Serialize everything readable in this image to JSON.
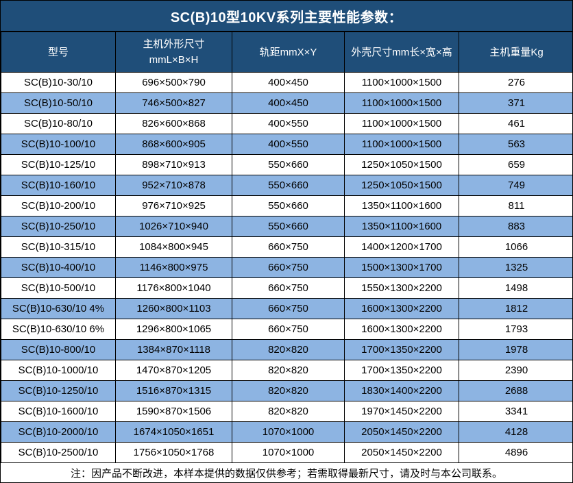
{
  "title": "SC(B)10型10KV系列主要性能参数：",
  "table": {
    "headers": [
      {
        "label": "型号"
      },
      {
        "label": "主机外形尺寸",
        "label2": "mmL×B×H"
      },
      {
        "label": "轨距mmX×Y"
      },
      {
        "label": "外壳尺寸mm长×宽×高"
      },
      {
        "label": "主机重量Kg"
      }
    ],
    "rows": [
      [
        "SC(B)10-30/10",
        "696×500×790",
        "400×450",
        "1100×1000×1500",
        "276"
      ],
      [
        "SC(B)10-50/10",
        "746×500×827",
        "400×450",
        "1100×1000×1500",
        "371"
      ],
      [
        "SC(B)10-80/10",
        "826×600×868",
        "400×550",
        "1100×1000×1500",
        "461"
      ],
      [
        "SC(B)10-100/10",
        "868×600×905",
        "400×550",
        "1100×1000×1500",
        "563"
      ],
      [
        "SC(B)10-125/10",
        "898×710×913",
        "550×660",
        "1250×1050×1500",
        "659"
      ],
      [
        "SC(B)10-160/10",
        "952×710×878",
        "550×660",
        "1250×1050×1500",
        "749"
      ],
      [
        "SC(B)10-200/10",
        "976×710×925",
        "550×660",
        "1350×1100×1600",
        "811"
      ],
      [
        "SC(B)10-250/10",
        "1026×710×940",
        "550×660",
        "1350×1100×1600",
        "883"
      ],
      [
        "SC(B)10-315/10",
        "1084×800×945",
        "660×750",
        "1400×1200×1700",
        "1066"
      ],
      [
        "SC(B)10-400/10",
        "1146×800×975",
        "660×750",
        "1500×1300×1700",
        "1325"
      ],
      [
        "SC(B)10-500/10",
        "1176×800×1040",
        "660×750",
        "1550×1300×2200",
        "1498"
      ],
      [
        "SC(B)10-630/10 4%",
        "1260×800×1103",
        "660×750",
        "1600×1300×2200",
        "1812"
      ],
      [
        "SC(B)10-630/10 6%",
        "1296×800×1065",
        "660×750",
        "1600×1300×2200",
        "1793"
      ],
      [
        "SC(B)10-800/10",
        "1384×870×1118",
        "820×820",
        "1700×1350×2200",
        "1978"
      ],
      [
        "SC(B)10-1000/10",
        "1470×870×1205",
        "820×820",
        "1700×1350×2200",
        "2390"
      ],
      [
        "SC(B)10-1250/10",
        "1516×870×1315",
        "820×820",
        "1830×1400×2200",
        "2688"
      ],
      [
        "SC(B)10-1600/10",
        "1590×870×1506",
        "820×820",
        "1970×1450×2200",
        "3341"
      ],
      [
        "SC(B)10-2000/10",
        "1674×1050×1651",
        "1070×1000",
        "2050×1450×2200",
        "4128"
      ],
      [
        "SC(B)10-2500/10",
        "1756×1050×1768",
        "1070×1000",
        "2050×1450×2200",
        "4896"
      ]
    ]
  },
  "note": "注：因产品不断改进，本样本提供的数据仅供参考；若需取得最新尺寸，请及时与本公司联系。",
  "colors": {
    "title_bg": "#1F4E79",
    "header_bg": "#1F4E79",
    "header_text": "#FFFFFF",
    "row_bg": "#FFFFFF",
    "row_alt_bg": "#8DB4E2",
    "border": "#000000",
    "text": "#000000"
  }
}
